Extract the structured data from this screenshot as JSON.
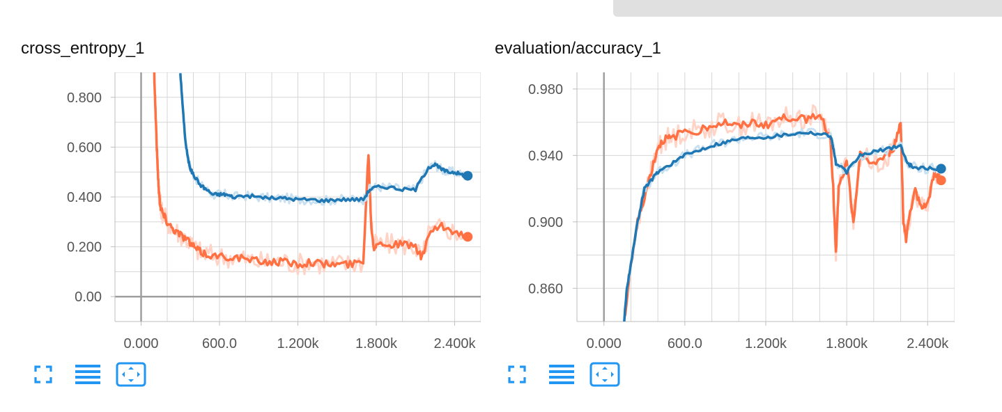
{
  "colors": {
    "blue": "#1f77b4",
    "blue_raw": "#c9e0f0",
    "orange": "#ff7043",
    "orange_raw": "#ffd3c6",
    "grid": "#d6d6d6",
    "axis_zero": "#9e9e9e",
    "toolbar_icon": "#2196f3"
  },
  "toolbar_icons": [
    "fullscreen-icon",
    "list-icon",
    "fit-domain-icon"
  ],
  "chart_data": [
    {
      "type": "line",
      "title": "cross_entropy_1",
      "xlabel": "",
      "ylabel": "",
      "xlim": [
        -200,
        2600
      ],
      "ylim": [
        -0.1,
        0.9
      ],
      "x_ticks": [
        0,
        600,
        1200,
        1800,
        2400
      ],
      "x_tick_labels": [
        "0.000",
        "600.0",
        "1.200k",
        "1.800k",
        "2.400k"
      ],
      "y_ticks": [
        0.0,
        0.2,
        0.4,
        0.6,
        0.8
      ],
      "y_tick_labels": [
        "0.00",
        "0.200",
        "0.400",
        "0.600",
        "0.800"
      ],
      "grid": true,
      "series": [
        {
          "color_key": "blue",
          "x": [
            300,
            320,
            340,
            360,
            380,
            400,
            450,
            500,
            550,
            600,
            650,
            700,
            800,
            900,
            1000,
            1100,
            1200,
            1300,
            1400,
            1500,
            1600,
            1700,
            1750,
            1800,
            1900,
            2000,
            2100,
            2200,
            2250,
            2300,
            2350,
            2400,
            2450,
            2500
          ],
          "y": [
            0.9,
            0.75,
            0.62,
            0.55,
            0.51,
            0.49,
            0.45,
            0.43,
            0.41,
            0.41,
            0.41,
            0.4,
            0.405,
            0.4,
            0.395,
            0.395,
            0.39,
            0.39,
            0.385,
            0.39,
            0.39,
            0.39,
            0.43,
            0.44,
            0.44,
            0.43,
            0.43,
            0.52,
            0.53,
            0.51,
            0.5,
            0.5,
            0.49,
            0.485
          ]
        },
        {
          "color_key": "orange",
          "x": [
            100,
            110,
            120,
            130,
            140,
            150,
            170,
            200,
            250,
            300,
            350,
            400,
            450,
            500,
            600,
            700,
            800,
            900,
            1000,
            1100,
            1200,
            1300,
            1400,
            1500,
            1600,
            1700,
            1740,
            1760,
            1780,
            1800,
            1900,
            2000,
            2100,
            2150,
            2200,
            2300,
            2400,
            2500
          ],
          "y": [
            0.9,
            0.75,
            0.6,
            0.48,
            0.4,
            0.36,
            0.33,
            0.3,
            0.27,
            0.25,
            0.23,
            0.2,
            0.18,
            0.17,
            0.16,
            0.16,
            0.15,
            0.14,
            0.14,
            0.14,
            0.13,
            0.14,
            0.13,
            0.13,
            0.13,
            0.14,
            0.58,
            0.3,
            0.2,
            0.21,
            0.21,
            0.21,
            0.2,
            0.15,
            0.25,
            0.28,
            0.26,
            0.24
          ]
        }
      ]
    },
    {
      "type": "line",
      "title": "evaluation/accuracy_1",
      "xlabel": "",
      "ylabel": "",
      "xlim": [
        -200,
        2600
      ],
      "ylim": [
        0.84,
        0.99
      ],
      "x_ticks": [
        0,
        600,
        1200,
        1800,
        2400
      ],
      "x_tick_labels": [
        "0.000",
        "600.0",
        "1.200k",
        "1.800k",
        "2.400k"
      ],
      "y_ticks": [
        0.86,
        0.9,
        0.94,
        0.98
      ],
      "y_tick_labels": [
        "0.860",
        "0.900",
        "0.940",
        "0.980"
      ],
      "grid": true,
      "series": [
        {
          "color_key": "blue",
          "x": [
            150,
            170,
            200,
            250,
            300,
            350,
            400,
            500,
            600,
            700,
            800,
            900,
            1000,
            1100,
            1200,
            1300,
            1400,
            1500,
            1600,
            1680,
            1700,
            1720,
            1800,
            1900,
            2000,
            2100,
            2200,
            2250,
            2300,
            2400,
            2500
          ],
          "y": [
            0.84,
            0.86,
            0.875,
            0.9,
            0.92,
            0.925,
            0.93,
            0.935,
            0.94,
            0.943,
            0.946,
            0.948,
            0.95,
            0.951,
            0.951,
            0.952,
            0.953,
            0.954,
            0.953,
            0.952,
            0.945,
            0.935,
            0.93,
            0.94,
            0.942,
            0.944,
            0.946,
            0.935,
            0.933,
            0.932,
            0.932
          ]
        },
        {
          "color_key": "orange",
          "x": [
            150,
            200,
            250,
            300,
            350,
            400,
            450,
            500,
            600,
            700,
            800,
            900,
            1000,
            1100,
            1200,
            1300,
            1400,
            1500,
            1600,
            1680,
            1700,
            1720,
            1740,
            1800,
            1850,
            1900,
            2000,
            2100,
            2150,
            2200,
            2220,
            2240,
            2300,
            2350,
            2400,
            2450,
            2500
          ],
          "y": [
            0.84,
            0.875,
            0.9,
            0.915,
            0.93,
            0.945,
            0.95,
            0.95,
            0.955,
            0.955,
            0.958,
            0.96,
            0.957,
            0.96,
            0.958,
            0.962,
            0.963,
            0.962,
            0.965,
            0.95,
            0.92,
            0.88,
            0.92,
            0.935,
            0.9,
            0.94,
            0.935,
            0.94,
            0.945,
            0.96,
            0.9,
            0.89,
            0.92,
            0.91,
            0.91,
            0.93,
            0.925
          ]
        }
      ]
    }
  ]
}
